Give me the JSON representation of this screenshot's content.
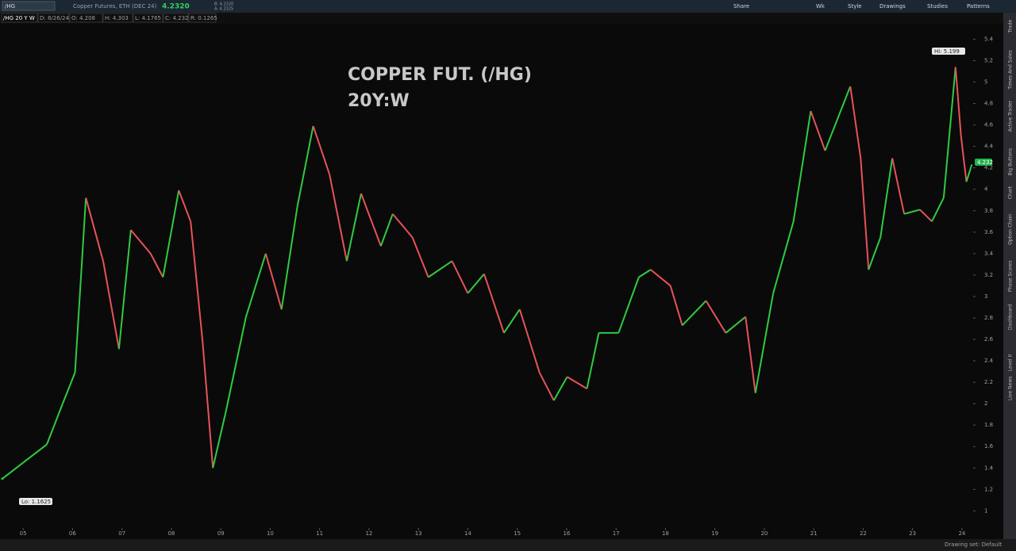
{
  "ui": {
    "symbol": "/HG",
    "description": "Copper Futures, ETH (DEC 24)",
    "last": "4.2320",
    "bid": "B: 4.2320",
    "ask": "A: 4.2325",
    "toolbar": [
      "Share",
      "Wk",
      "Style",
      "Drawings",
      "Studies",
      "Patterns"
    ],
    "info": [
      "/HG 20 Y W",
      "D: 8/26/24",
      "O: 4.208",
      "H: 4.303",
      "L: 4.1765",
      "C: 4.232",
      "R: 0.1265"
    ],
    "sidebar": [
      "Trade",
      "Times And Sales",
      "Active Trader",
      "Big Buttons",
      "Chart",
      "Option Chain",
      "Phase Scores",
      "Dashboard",
      "Level II",
      "Live News"
    ],
    "footer": "Drawing set: Default"
  },
  "chart_data": {
    "type": "line",
    "title": "COPPER FUT. (/HG)",
    "subtitle": "20Y:W",
    "up_color": "#2ecc40",
    "down_color": "#e8525a",
    "x": [
      2004.58,
      2005.0,
      2005.48,
      2005.8,
      2006.05,
      2006.27,
      2006.62,
      2006.94,
      2007.18,
      2007.58,
      2007.83,
      2008.15,
      2008.39,
      2008.63,
      2008.84,
      2009.1,
      2009.51,
      2009.91,
      2010.23,
      2010.55,
      2010.87,
      2011.2,
      2011.55,
      2011.84,
      2012.24,
      2012.48,
      2012.88,
      2013.2,
      2013.68,
      2014.0,
      2014.33,
      2014.73,
      2015.05,
      2015.45,
      2015.74,
      2016.01,
      2016.41,
      2016.65,
      2017.05,
      2017.46,
      2017.7,
      2018.1,
      2018.34,
      2018.82,
      2019.22,
      2019.62,
      2019.82,
      2020.18,
      2020.59,
      2020.94,
      2021.23,
      2021.74,
      2021.95,
      2022.11,
      2022.35,
      2022.59,
      2022.83,
      2023.15,
      2023.39,
      2023.63,
      2023.87,
      2023.98,
      2024.09,
      2024.2
    ],
    "series": [
      {
        "name": "/HG",
        "values": [
          1.3,
          1.45,
          1.62,
          2.0,
          2.29,
          3.92,
          3.33,
          2.51,
          3.62,
          3.4,
          3.18,
          3.99,
          3.7,
          2.59,
          1.4,
          1.92,
          2.81,
          3.4,
          2.88,
          3.84,
          4.59,
          4.14,
          3.33,
          3.96,
          3.47,
          3.77,
          3.55,
          3.18,
          3.33,
          3.03,
          3.21,
          2.66,
          2.88,
          2.29,
          2.03,
          2.25,
          2.14,
          2.66,
          2.66,
          3.18,
          3.25,
          3.1,
          2.73,
          2.96,
          2.66,
          2.81,
          2.1,
          3.03,
          3.7,
          4.73,
          4.36,
          4.96,
          4.29,
          3.25,
          3.55,
          4.29,
          3.77,
          3.81,
          3.7,
          3.92,
          5.14,
          4.5,
          4.07,
          4.232
        ]
      }
    ],
    "annotations": [
      "Hi: 5.199",
      "Lo: 1.1625",
      "4.232"
    ],
    "xlim": [
      2004.58,
      2024.21
    ],
    "xticks": [
      {
        "value": 2005,
        "label": "05"
      },
      {
        "value": 2006,
        "label": "06"
      },
      {
        "value": 2007,
        "label": "07"
      },
      {
        "value": 2008,
        "label": "08"
      },
      {
        "value": 2009,
        "label": "09"
      },
      {
        "value": 2010,
        "label": "10"
      },
      {
        "value": 2011,
        "label": "11"
      },
      {
        "value": 2012,
        "label": "12"
      },
      {
        "value": 2013,
        "label": "13"
      },
      {
        "value": 2014,
        "label": "14"
      },
      {
        "value": 2015,
        "label": "15"
      },
      {
        "value": 2016,
        "label": "16"
      },
      {
        "value": 2017,
        "label": "17"
      },
      {
        "value": 2018,
        "label": "18"
      },
      {
        "value": 2019,
        "label": "19"
      },
      {
        "value": 2020,
        "label": "20"
      },
      {
        "value": 2021,
        "label": "21"
      },
      {
        "value": 2022,
        "label": "22"
      },
      {
        "value": 2023,
        "label": "23"
      },
      {
        "value": 2024,
        "label": "24"
      }
    ],
    "ylim": [
      0.84,
      5.64
    ],
    "yticks": [
      1,
      1.2,
      1.4,
      1.6,
      1.8,
      2,
      2.2,
      2.4,
      2.6,
      2.8,
      3,
      3.2,
      3.4,
      3.6,
      3.8,
      4,
      4.2,
      4.4,
      4.6,
      4.8,
      5,
      5.2,
      5.4
    ]
  }
}
